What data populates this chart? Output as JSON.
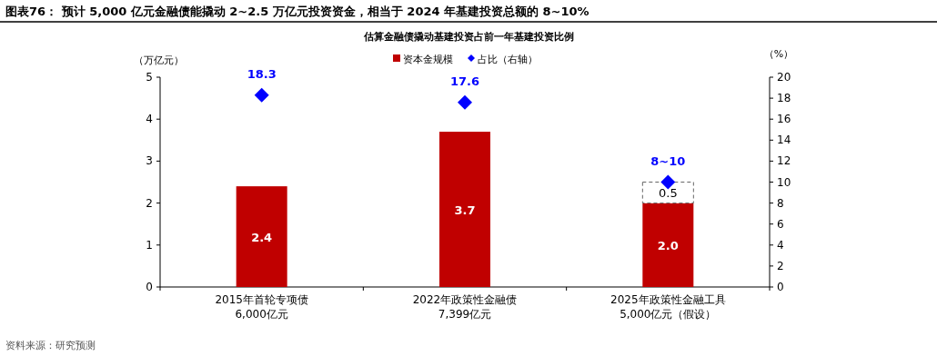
{
  "chart_data": {
    "type": "bar",
    "title": "图表76：  预计 5,000 亿元金融债能撬动 2~2.5 万亿元投资资金，相当于 2024 年基建投资总额的 8~10%",
    "subtitle": "估算金融债撬动基建投资占前一年基建投资比例",
    "ylabel": "（万亿元）",
    "y2label": "（%）",
    "annotations": [
      "资料来源：研究预测"
    ],
    "categories": [
      "2015年首轮专项债\n6,000亿元",
      "2022年政策性金融债\n7,399亿元",
      "2025年政策性金融工具\n5,000亿元（假设）"
    ],
    "stacked": true,
    "legend": "top",
    "series": [
      {
        "name": "资本金规模",
        "color": "#c00000",
        "values": [
          2.4,
          3.7,
          2.0
        ],
        "value_labels": [
          "2.4",
          "3.7",
          "2.0"
        ]
      },
      {
        "color": "#ffffff",
        "line_style": "dashed",
        "values": [
          null,
          null,
          0.5
        ],
        "value_labels": [
          null,
          null,
          "0.5"
        ]
      },
      {
        "name": "占比（右轴）",
        "type": "scatter",
        "axis": "y2",
        "marker": "diamond",
        "color": "#0000ff",
        "values": [
          18.3,
          17.6,
          10
        ],
        "value_labels": [
          "18.3",
          "17.6",
          "8~10"
        ]
      }
    ],
    "ylim": [
      0,
      5
    ],
    "yticks": [
      0,
      1,
      2,
      3,
      4,
      5
    ],
    "y2lim": [
      0,
      20
    ],
    "y2ticks": [
      0,
      2,
      4,
      6,
      8,
      10,
      12,
      14,
      16,
      18,
      20
    ]
  }
}
